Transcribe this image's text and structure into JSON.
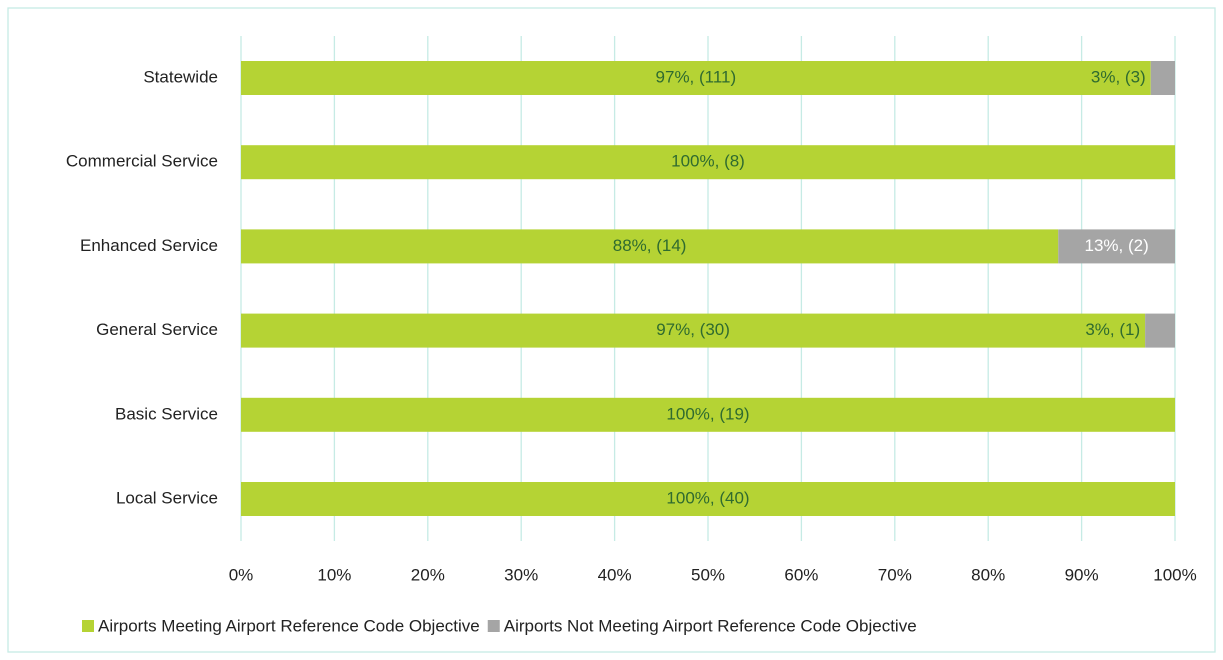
{
  "chart_data": {
    "type": "stacked_bar_horizontal",
    "categories": [
      "Statewide",
      "Commercial Service",
      "Enhanced Service",
      "General Service",
      "Basic Service",
      "Local Service"
    ],
    "series": [
      {
        "name": "Airports Meeting Airport Reference Code Objective",
        "color": "#b5d334",
        "values": [
          97.4,
          100,
          87.5,
          96.8,
          100,
          100
        ],
        "value_labels": [
          "97%, (111)",
          "100%, (8)",
          "88%, (14)",
          "97%, (30)",
          "100%, (19)",
          "100%, (40)"
        ]
      },
      {
        "name": "Airports Not Meeting Airport Reference Code Objective",
        "color": "#a5a5a5",
        "values": [
          2.6,
          null,
          12.5,
          3.2,
          null,
          null
        ],
        "value_labels": [
          "3%, (3)",
          null,
          "13%, (2)",
          "3%, (1)",
          null,
          null
        ]
      }
    ],
    "xlim": [
      0,
      100
    ],
    "xticks": [
      {
        "value": 0,
        "label": "0%"
      },
      {
        "value": 10,
        "label": "10%"
      },
      {
        "value": 20,
        "label": "20%"
      },
      {
        "value": 30,
        "label": "30%"
      },
      {
        "value": 40,
        "label": "40%"
      },
      {
        "value": 50,
        "label": "50%"
      },
      {
        "value": 60,
        "label": "60%"
      },
      {
        "value": 70,
        "label": "70%"
      },
      {
        "value": 80,
        "label": "80%"
      },
      {
        "value": 90,
        "label": "90%"
      },
      {
        "value": 100,
        "label": "100%"
      }
    ],
    "grid": true,
    "legend": "bottom"
  }
}
